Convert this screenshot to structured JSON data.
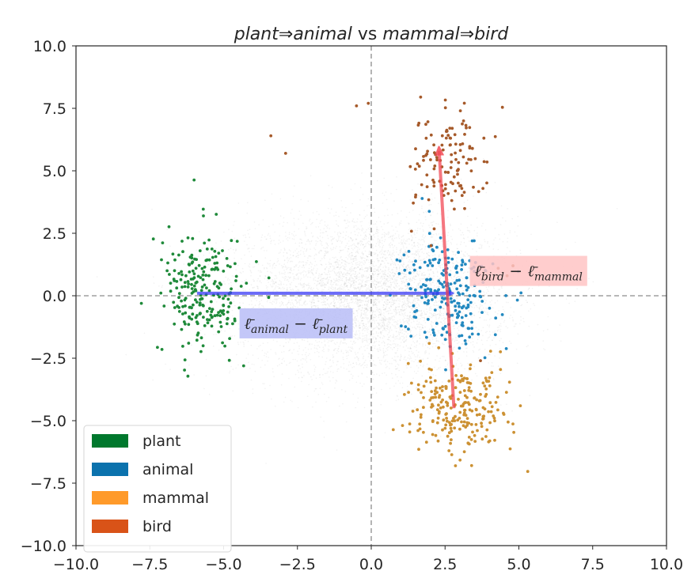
{
  "chart_data": {
    "type": "scatter",
    "title_parts": {
      "a": "plant",
      "arrow1": "⇒",
      "b": "animal",
      "vs": " vs ",
      "c": "mammal",
      "arrow2": "⇒",
      "d": "bird"
    },
    "xlim": [
      -10,
      10
    ],
    "ylim": [
      -10,
      10
    ],
    "x_ticks": [
      "−10.0",
      "−7.5",
      "−5.0",
      "−2.5",
      "0.0",
      "2.5",
      "5.0",
      "7.5",
      "10.0"
    ],
    "y_ticks": [
      "−10.0",
      "−7.5",
      "−5.0",
      "−2.5",
      "0.0",
      "2.5",
      "5.0",
      "7.5",
      "10.0"
    ],
    "x_tick_values": [
      -10,
      -7.5,
      -5,
      -2.5,
      0,
      2.5,
      5,
      7.5,
      10
    ],
    "y_tick_values": [
      -10,
      -7.5,
      -5,
      -2.5,
      0,
      2.5,
      5,
      7.5,
      10
    ],
    "legend": {
      "placement": "lower-left",
      "entries": [
        {
          "label": "plant",
          "color": "#00782d"
        },
        {
          "label": "animal",
          "color": "#0b72ad"
        },
        {
          "label": "mammal",
          "color": "#ff9a2a"
        },
        {
          "label": "bird",
          "color": "#d95318"
        }
      ]
    },
    "point_colors": {
      "plant": "#1f8a3a",
      "animal": "#2389c0",
      "mammal": "#cc9133",
      "bird": "#a65a2a",
      "background": "#555555"
    },
    "series": [
      {
        "group": "plant",
        "center": [
          -5.7,
          0.1
        ],
        "spread": [
          0.7,
          1.2
        ],
        "count": 230
      },
      {
        "group": "animal",
        "center": [
          2.6,
          0.2
        ],
        "spread": [
          0.75,
          1.1
        ],
        "count": 230
      },
      {
        "group": "mammal",
        "center": [
          3.0,
          -4.6
        ],
        "spread": [
          0.85,
          0.85
        ],
        "count": 230
      },
      {
        "group": "bird",
        "center": [
          2.6,
          5.4
        ],
        "spread": [
          0.65,
          1.1
        ],
        "count": 120
      }
    ],
    "outliers": [
      {
        "x": -3.4,
        "y": 6.4
      },
      {
        "x": -2.9,
        "y": 5.7
      },
      {
        "x": -0.5,
        "y": 7.6
      },
      {
        "x": -0.1,
        "y": 7.7
      },
      {
        "x": 4.8,
        "y": 1.2
      },
      {
        "x": 4.6,
        "y": 0.8
      },
      {
        "x": 3.7,
        "y": -2.6
      },
      {
        "x": 4.3,
        "y": 1.1
      }
    ],
    "background_cloud": {
      "center": [
        0.0,
        0.0
      ],
      "spread": [
        2.3,
        1.6
      ],
      "count": 6000
    },
    "reference_lines": {
      "x": 0,
      "y": 0,
      "style": "dashed"
    },
    "vectors": [
      {
        "name": "animal-minus-plant",
        "from": [
          -5.9,
          0.1
        ],
        "to": [
          2.7,
          0.1
        ],
        "color": "#3a3af5",
        "label_main": "ℓ̄",
        "label_sub1": "animal",
        "label_minus": " − ",
        "label_main2": "ℓ̄",
        "label_sub2": "plant",
        "label_box_color": "#b9bdf7",
        "label_anchor": [
          -4.3,
          -1.2
        ]
      },
      {
        "name": "bird-minus-mammal",
        "from": [
          2.8,
          -4.5
        ],
        "to": [
          2.3,
          5.8
        ],
        "color": "#f24a55",
        "label_main": "ℓ̄",
        "label_sub1": "bird",
        "label_minus": " − ",
        "label_main2": "ℓ̄",
        "label_sub2": "mammal",
        "label_box_color": "#ffc4c4",
        "label_anchor": [
          3.5,
          0.9
        ]
      }
    ]
  }
}
